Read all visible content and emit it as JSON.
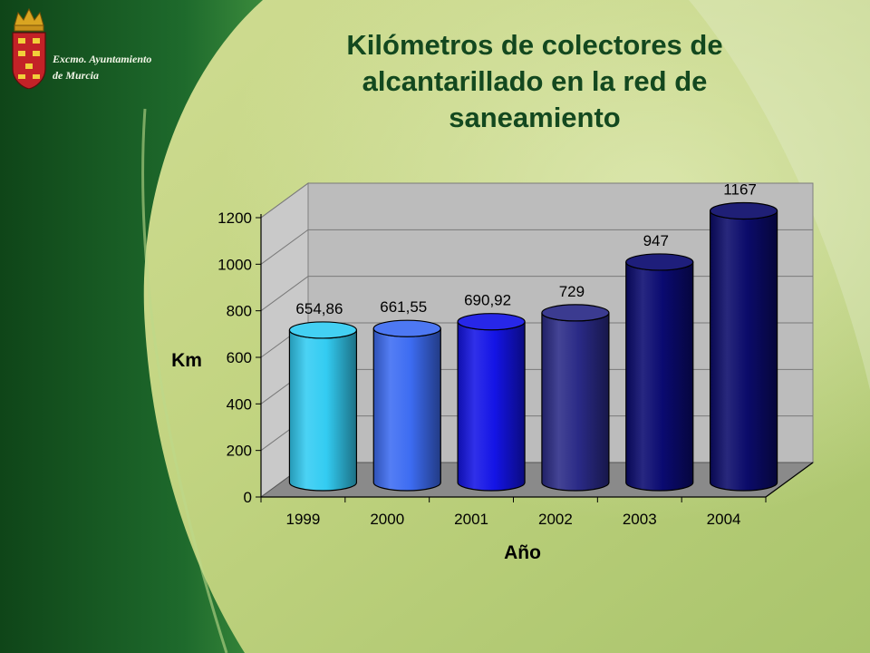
{
  "organization": {
    "line1": "Excmo. Ayuntamiento",
    "line2": "de Murcia"
  },
  "title_lines": [
    "Kilómetros de colectores de",
    "alcantarillado en la red de",
    "saneamiento"
  ],
  "colors": {
    "sidebar": "#1f6a2c",
    "background": "#bfd27e",
    "title": "#13481f"
  },
  "chart_data": {
    "type": "bar",
    "title": "Kilómetros de colectores de alcantarillado en la red de saneamiento",
    "xlabel": "Año",
    "ylabel": "Km",
    "categories": [
      "1999",
      "2000",
      "2001",
      "2002",
      "2003",
      "2004"
    ],
    "values": [
      654.86,
      661.55,
      690.92,
      729,
      947,
      1167
    ],
    "value_labels": [
      "654,86",
      "661,55",
      "690,92",
      "729",
      "947",
      "1167"
    ],
    "bar_colors": [
      "#33ccf2",
      "#3d6cf2",
      "#1414e6",
      "#2a2a86",
      "#0a0a70",
      "#0b0b6a"
    ],
    "ylim": [
      0,
      1200
    ],
    "yticks": [
      "0",
      "200",
      "400",
      "600",
      "800",
      "1000",
      "1200"
    ],
    "grid": true,
    "legend": "none"
  }
}
